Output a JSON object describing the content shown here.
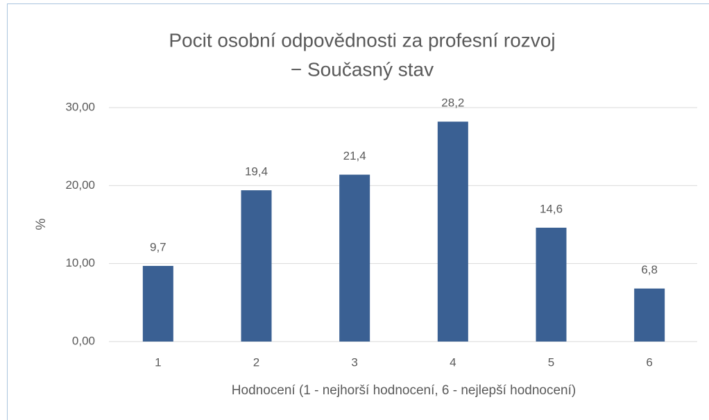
{
  "chart_data": {
    "type": "bar",
    "title": [
      "Pocit osobní odpovědnosti za profesní rozvoj",
      "− Současný stav"
    ],
    "x_label": "Hodnocení (1 - nejhorší hodnocení, 6 - nejlepší hodnocení)",
    "y_label": "%",
    "categories": [
      "1",
      "2",
      "3",
      "4",
      "5",
      "6"
    ],
    "values": [
      9.7,
      19.4,
      21.4,
      28.2,
      14.6,
      6.8
    ],
    "value_labels": [
      "9,7",
      "19,4",
      "21,4",
      "28,2",
      "14,6",
      "6,8"
    ],
    "color": "#3a6093",
    "ylim": [
      0,
      30
    ],
    "yticks": [
      {
        "value": 0,
        "label": "0,00"
      },
      {
        "value": 10,
        "label": "10,00"
      },
      {
        "value": 20,
        "label": "20,00"
      },
      {
        "value": 30,
        "label": "30,00"
      }
    ],
    "grid": true
  }
}
